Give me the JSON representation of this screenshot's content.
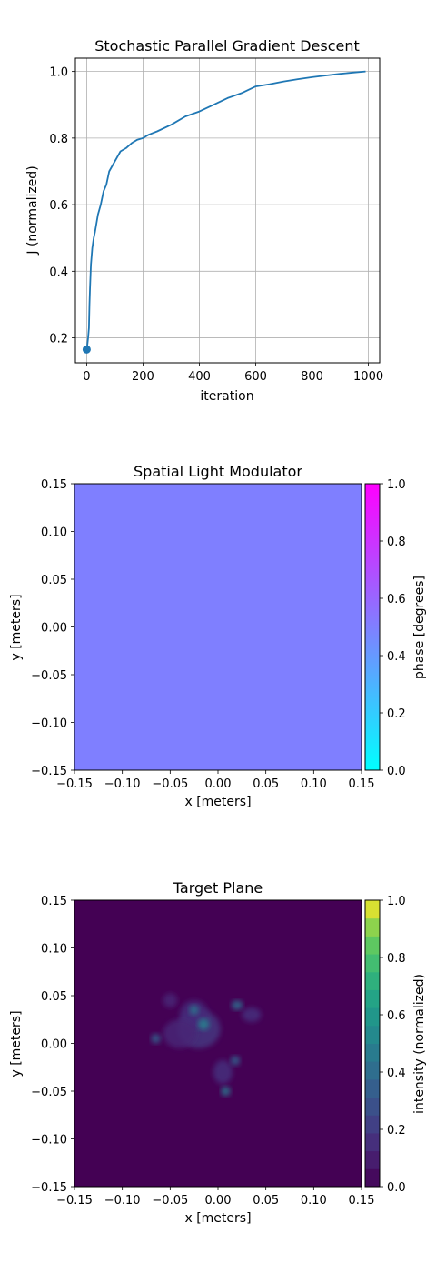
{
  "chart_data": [
    {
      "type": "line",
      "title": "Stochastic Parallel Gradient Descent",
      "xlabel": "iteration",
      "ylabel": "J (normalized)",
      "xlim": [
        -40,
        1040
      ],
      "ylim": [
        0.125,
        1.04
      ],
      "xticks": [
        0,
        200,
        400,
        600,
        800,
        1000
      ],
      "yticks": [
        0.2,
        0.4,
        0.6,
        0.8,
        1.0
      ],
      "xtick_labels": [
        "0",
        "200",
        "400",
        "600",
        "800",
        "1000"
      ],
      "ytick_labels": [
        "0.2",
        "0.4",
        "0.6",
        "0.8",
        "1.0"
      ],
      "grid": true,
      "line_color": "#1f77b4",
      "series": [
        {
          "x": [
            0,
            2,
            5,
            8,
            10,
            12,
            15,
            20,
            25,
            30,
            40,
            50,
            60,
            70,
            80,
            100,
            120,
            140,
            160,
            180,
            200,
            220,
            250,
            300,
            350,
            400,
            450,
            500,
            550,
            600,
            650,
            700,
            750,
            800,
            850,
            900,
            950,
            990
          ],
          "y": [
            0.165,
            0.175,
            0.2,
            0.23,
            0.3,
            0.35,
            0.42,
            0.47,
            0.5,
            0.52,
            0.57,
            0.6,
            0.64,
            0.66,
            0.7,
            0.73,
            0.76,
            0.77,
            0.785,
            0.795,
            0.8,
            0.81,
            0.82,
            0.84,
            0.865,
            0.88,
            0.9,
            0.92,
            0.935,
            0.955,
            0.962,
            0.97,
            0.977,
            0.983,
            0.988,
            0.993,
            0.997,
            1.0
          ]
        }
      ],
      "marker_point": {
        "x": 0,
        "y": 0.165
      }
    },
    {
      "type": "heatmap",
      "title": "Spatial Light Modulator",
      "xlabel": "x [meters]",
      "ylabel": "y [meters]",
      "xlim": [
        -0.15,
        0.15
      ],
      "ylim": [
        -0.15,
        0.15
      ],
      "ticks": [
        -0.15,
        -0.1,
        -0.05,
        0.0,
        0.05,
        0.1,
        0.15
      ],
      "tick_labels": [
        "−0.15",
        "−0.10",
        "−0.05",
        "0.00",
        "0.05",
        "0.10",
        "0.15"
      ],
      "fill_color": "#7f7fff",
      "colorbar": {
        "label": "phase [degrees]",
        "range": [
          0,
          1.0
        ],
        "ticks": [
          0.0,
          0.2,
          0.4,
          0.6,
          0.8,
          1.0
        ],
        "tick_labels": [
          "0.0",
          "0.2",
          "0.4",
          "0.6",
          "0.8",
          "1.0"
        ],
        "colormap": "cool",
        "color_low": "#00ffff",
        "color_high": "#ff00ff"
      }
    },
    {
      "type": "heatmap",
      "title": "Target Plane",
      "xlabel": "x [meters]",
      "ylabel": "y [meters]",
      "xlim": [
        -0.15,
        0.15
      ],
      "ylim": [
        -0.15,
        0.15
      ],
      "ticks": [
        -0.15,
        -0.1,
        -0.05,
        0.0,
        0.05,
        0.1,
        0.15
      ],
      "tick_labels": [
        "−0.15",
        "−0.10",
        "−0.05",
        "0.00",
        "0.05",
        "0.10",
        "0.15"
      ],
      "background_color": "#440154",
      "blobs": [
        {
          "x": -0.02,
          "y": 0.015,
          "sx": 0.045,
          "sy": 0.04,
          "v": 0.18
        },
        {
          "x": -0.025,
          "y": 0.03,
          "sx": 0.03,
          "sy": 0.03,
          "v": 0.14
        },
        {
          "x": -0.04,
          "y": 0.01,
          "sx": 0.035,
          "sy": 0.03,
          "v": 0.12
        },
        {
          "x": -0.015,
          "y": 0.02,
          "sx": 0.012,
          "sy": 0.012,
          "v": 0.5
        },
        {
          "x": -0.025,
          "y": 0.035,
          "sx": 0.01,
          "sy": 0.01,
          "v": 0.45
        },
        {
          "x": -0.065,
          "y": 0.005,
          "sx": 0.01,
          "sy": 0.01,
          "v": 0.35
        },
        {
          "x": 0.02,
          "y": 0.04,
          "sx": 0.012,
          "sy": 0.01,
          "v": 0.4
        },
        {
          "x": 0.035,
          "y": 0.03,
          "sx": 0.02,
          "sy": 0.015,
          "v": 0.16
        },
        {
          "x": 0.005,
          "y": -0.03,
          "sx": 0.02,
          "sy": 0.025,
          "v": 0.16
        },
        {
          "x": 0.018,
          "y": -0.018,
          "sx": 0.01,
          "sy": 0.01,
          "v": 0.35
        },
        {
          "x": 0.008,
          "y": -0.05,
          "sx": 0.01,
          "sy": 0.01,
          "v": 0.45
        },
        {
          "x": -0.05,
          "y": 0.045,
          "sx": 0.015,
          "sy": 0.015,
          "v": 0.12
        }
      ],
      "colorbar": {
        "label": "intensity (normalized)",
        "range": [
          0,
          1.0
        ],
        "ticks": [
          0.0,
          0.2,
          0.4,
          0.6,
          0.8,
          1.0
        ],
        "tick_labels": [
          "0.0",
          "0.2",
          "0.4",
          "0.6",
          "0.8",
          "1.0"
        ],
        "colormap": "viridis",
        "levels": 16
      }
    }
  ]
}
